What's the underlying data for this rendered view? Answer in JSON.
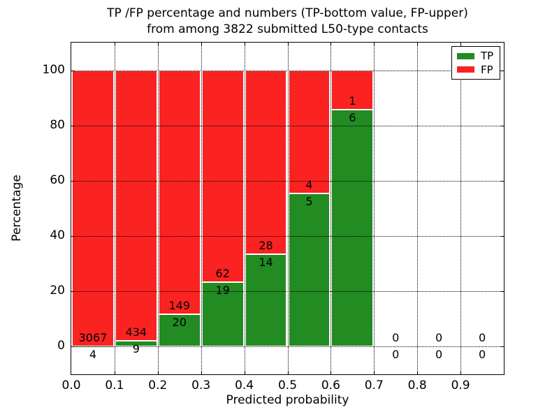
{
  "title": {
    "line1": "TP /FP percentage and numbers (TP-bottom value, FP-upper)",
    "line2": "from among 3822 submitted L50-type contacts"
  },
  "chart_data": {
    "type": "bar",
    "stacked": true,
    "normalized_to_percent": true,
    "title": "TP /FP percentage and numbers (TP-bottom value, FP-upper) from among 3822 submitted L50-type contacts",
    "xlabel": "Predicted probability",
    "ylabel": "Percentage",
    "total_contacts": 3822,
    "bin_width": 0.1,
    "bin_starts": [
      0.0,
      0.1,
      0.2,
      0.3,
      0.4,
      0.5,
      0.6,
      0.7,
      0.8,
      0.9
    ],
    "series": [
      {
        "name": "TP",
        "color": "#228B22",
        "counts": [
          4,
          9,
          20,
          19,
          14,
          5,
          6,
          0,
          0,
          0
        ]
      },
      {
        "name": "FP",
        "color": "#FB2222",
        "counts": [
          3067,
          434,
          149,
          62,
          28,
          4,
          1,
          0,
          0,
          0
        ]
      }
    ],
    "tp_percent_of_bin": [
      0.13,
      2.03,
      11.83,
      23.46,
      33.33,
      55.56,
      85.71,
      0,
      0,
      0
    ],
    "xticks": [
      "0.0",
      "0.1",
      "0.2",
      "0.3",
      "0.4",
      "0.5",
      "0.6",
      "0.7",
      "0.8",
      "0.9"
    ],
    "yticks": [
      0,
      20,
      40,
      60,
      80,
      100
    ],
    "xlim": [
      0.0,
      1.0
    ],
    "ylim": [
      -10,
      110
    ],
    "grid": true,
    "grid_style": "dotted",
    "grid_above_bars": true,
    "bar_edge_color": "#ffffff",
    "legend": {
      "position": "upper right",
      "items": [
        {
          "label": "TP",
          "color": "#228B22"
        },
        {
          "label": "FP",
          "color": "#FB2222"
        }
      ]
    }
  }
}
